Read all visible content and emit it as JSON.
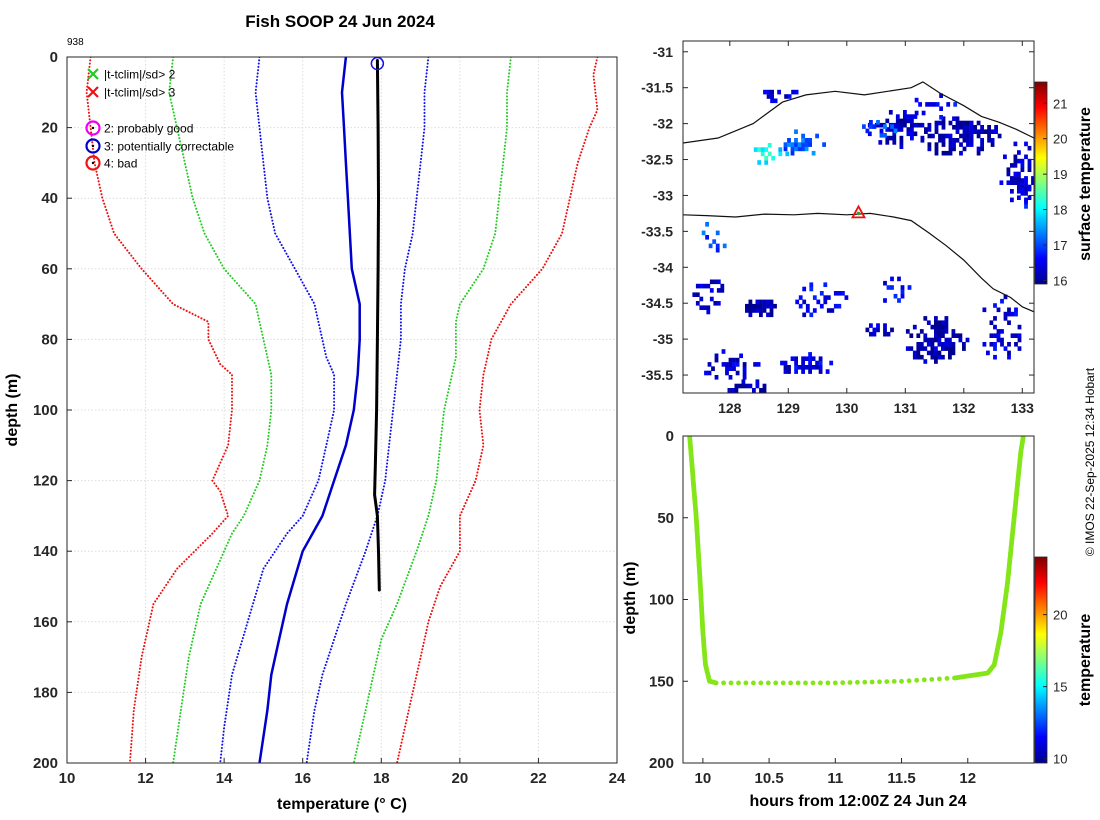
{
  "figure": {
    "title": "Fish SOOP 24 Jun 2024",
    "profile_id": "938",
    "credit": "© IMOS 22-Sep-2025 12:34 Hobart"
  },
  "chart_data": [
    {
      "type": "line",
      "name": "profile",
      "xlabel": "temperature (° C)",
      "ylabel": "depth (m)",
      "xlim": [
        10,
        24
      ],
      "ylim": [
        0,
        200
      ],
      "y_reversed": true,
      "xticks": [
        10,
        12,
        14,
        16,
        18,
        20,
        22,
        24
      ],
      "yticks": [
        0,
        20,
        40,
        60,
        80,
        100,
        120,
        140,
        160,
        180,
        200
      ],
      "grid": true,
      "legend": {
        "position": "top-left",
        "entries": [
          {
            "label": "|t-tclim|/sd> 2",
            "marker": "x",
            "color": "#22cc22"
          },
          {
            "label": "|t-tclim|/sd> 3",
            "marker": "x",
            "color": "#ee1111"
          },
          {
            "label": "2: probably good",
            "marker": "circle-dot",
            "color": "#ee00ee"
          },
          {
            "label": "3: potentially correctable",
            "marker": "circle-dot",
            "color": "#0000cc"
          },
          {
            "label": "4: bad",
            "marker": "circle-dot",
            "color": "#ee1111"
          }
        ]
      },
      "series": [
        {
          "name": "clim -3sd",
          "style": "dotted",
          "color": "#ee1111",
          "points": [
            [
              10.6,
              0
            ],
            [
              10.5,
              10
            ],
            [
              10.6,
              20
            ],
            [
              10.7,
              30
            ],
            [
              10.9,
              40
            ],
            [
              11.2,
              50
            ],
            [
              11.9,
              60
            ],
            [
              12.7,
              70
            ],
            [
              13.6,
              75
            ],
            [
              13.6,
              80
            ],
            [
              13.9,
              87
            ],
            [
              14.2,
              90
            ],
            [
              14.2,
              100
            ],
            [
              14.1,
              110
            ],
            [
              13.7,
              120
            ],
            [
              13.9,
              123
            ],
            [
              14.1,
              130
            ],
            [
              13.7,
              135
            ],
            [
              12.8,
              145
            ],
            [
              12.2,
              155
            ],
            [
              11.9,
              170
            ],
            [
              11.7,
              185
            ],
            [
              11.6,
              200
            ]
          ]
        },
        {
          "name": "clim -2sd",
          "style": "dotted",
          "color": "#22cc22",
          "points": [
            [
              12.7,
              0
            ],
            [
              12.6,
              10
            ],
            [
              12.8,
              20
            ],
            [
              13.0,
              30
            ],
            [
              13.2,
              40
            ],
            [
              13.5,
              50
            ],
            [
              14.0,
              60
            ],
            [
              14.8,
              70
            ],
            [
              14.9,
              75
            ],
            [
              15.1,
              85
            ],
            [
              15.2,
              90
            ],
            [
              15.2,
              100
            ],
            [
              15.1,
              110
            ],
            [
              14.9,
              120
            ],
            [
              14.5,
              130
            ],
            [
              14.2,
              135
            ],
            [
              13.8,
              145
            ],
            [
              13.4,
              155
            ],
            [
              13.1,
              170
            ],
            [
              12.9,
              185
            ],
            [
              12.7,
              200
            ]
          ]
        },
        {
          "name": "clim -1sd",
          "style": "dotted",
          "color": "#1111ee",
          "points": [
            [
              14.9,
              0
            ],
            [
              14.8,
              10
            ],
            [
              14.9,
              20
            ],
            [
              15.0,
              30
            ],
            [
              15.1,
              40
            ],
            [
              15.3,
              50
            ],
            [
              15.8,
              60
            ],
            [
              16.3,
              70
            ],
            [
              16.4,
              75
            ],
            [
              16.6,
              85
            ],
            [
              16.8,
              90
            ],
            [
              16.8,
              100
            ],
            [
              16.6,
              110
            ],
            [
              16.4,
              120
            ],
            [
              16.0,
              130
            ],
            [
              15.6,
              135
            ],
            [
              15.0,
              145
            ],
            [
              14.6,
              160
            ],
            [
              14.2,
              175
            ],
            [
              14.0,
              190
            ],
            [
              13.9,
              200
            ]
          ]
        },
        {
          "name": "clim mean",
          "style": "solid",
          "color": "#0000cc",
          "points": [
            [
              17.1,
              0
            ],
            [
              17.0,
              10
            ],
            [
              17.05,
              20
            ],
            [
              17.1,
              30
            ],
            [
              17.15,
              40
            ],
            [
              17.25,
              60
            ],
            [
              17.45,
              70
            ],
            [
              17.45,
              80
            ],
            [
              17.4,
              90
            ],
            [
              17.3,
              100
            ],
            [
              17.1,
              110
            ],
            [
              16.8,
              120
            ],
            [
              16.5,
              130
            ],
            [
              16.0,
              140
            ],
            [
              15.6,
              155
            ],
            [
              15.4,
              165
            ],
            [
              15.2,
              175
            ],
            [
              15.1,
              185
            ],
            [
              14.9,
              200
            ]
          ]
        },
        {
          "name": "clim +1sd",
          "style": "dotted",
          "color": "#1111ee",
          "points": [
            [
              19.2,
              0
            ],
            [
              19.1,
              10
            ],
            [
              19.1,
              20
            ],
            [
              19.0,
              30
            ],
            [
              18.9,
              40
            ],
            [
              18.8,
              50
            ],
            [
              18.6,
              60
            ],
            [
              18.5,
              70
            ],
            [
              18.5,
              80
            ],
            [
              18.4,
              90
            ],
            [
              18.3,
              100
            ],
            [
              18.2,
              110
            ],
            [
              18.1,
              120
            ],
            [
              17.9,
              130
            ],
            [
              17.6,
              140
            ],
            [
              17.1,
              155
            ],
            [
              16.8,
              165
            ],
            [
              16.5,
              175
            ],
            [
              16.3,
              185
            ],
            [
              16.1,
              200
            ]
          ]
        },
        {
          "name": "clim +2sd",
          "style": "dotted",
          "color": "#22cc22",
          "points": [
            [
              21.3,
              0
            ],
            [
              21.2,
              10
            ],
            [
              21.2,
              20
            ],
            [
              21.1,
              30
            ],
            [
              21.0,
              40
            ],
            [
              20.9,
              50
            ],
            [
              20.6,
              60
            ],
            [
              20.0,
              70
            ],
            [
              19.9,
              75
            ],
            [
              19.9,
              85
            ],
            [
              19.8,
              90
            ],
            [
              19.6,
              100
            ],
            [
              19.5,
              110
            ],
            [
              19.4,
              120
            ],
            [
              19.2,
              130
            ],
            [
              18.9,
              140
            ],
            [
              18.4,
              155
            ],
            [
              18.0,
              165
            ],
            [
              17.8,
              175
            ],
            [
              17.6,
              185
            ],
            [
              17.3,
              200
            ]
          ]
        },
        {
          "name": "clim +3sd",
          "style": "dotted",
          "color": "#ee1111",
          "points": [
            [
              23.5,
              0
            ],
            [
              23.4,
              5
            ],
            [
              23.5,
              15
            ],
            [
              23.3,
              20
            ],
            [
              23.0,
              30
            ],
            [
              22.8,
              40
            ],
            [
              22.6,
              50
            ],
            [
              22.1,
              60
            ],
            [
              21.3,
              70
            ],
            [
              20.8,
              80
            ],
            [
              20.7,
              85
            ],
            [
              20.6,
              90
            ],
            [
              20.5,
              100
            ],
            [
              20.6,
              110
            ],
            [
              20.4,
              120
            ],
            [
              20.0,
              130
            ],
            [
              20.0,
              140
            ],
            [
              19.5,
              150
            ],
            [
              19.2,
              160
            ],
            [
              19.0,
              170
            ],
            [
              18.8,
              180
            ],
            [
              18.5,
              195
            ],
            [
              18.4,
              200
            ]
          ]
        },
        {
          "name": "profile",
          "style": "solid",
          "color": "#000000",
          "points": [
            [
              17.9,
              1
            ],
            [
              17.92,
              20
            ],
            [
              17.93,
              40
            ],
            [
              17.92,
              60
            ],
            [
              17.9,
              80
            ],
            [
              17.88,
              100
            ],
            [
              17.85,
              115
            ],
            [
              17.83,
              124
            ],
            [
              17.9,
              130
            ],
            [
              17.93,
              140
            ],
            [
              17.95,
              151
            ]
          ]
        }
      ],
      "annotations": [
        {
          "type": "circle",
          "color": "#1111ee",
          "x": 17.9,
          "y": 1
        }
      ]
    },
    {
      "type": "heatmap",
      "name": "surface temperature map",
      "colorbar_label": "surface temperature",
      "xlim": [
        127.2,
        133.2
      ],
      "ylim": [
        -35.75,
        -30.85
      ],
      "xticks": [
        128,
        129,
        130,
        131,
        132,
        133
      ],
      "yticks": [
        -31,
        -31.5,
        -32,
        -32.5,
        -33,
        -33.5,
        -34,
        -34.5,
        -35,
        -35.5
      ],
      "colorbar_ticks": [
        16,
        17,
        18,
        19,
        20,
        21
      ],
      "clim": [
        15.9,
        21.6
      ],
      "marker": {
        "lon": 130.2,
        "lat": -33.25,
        "shape": "triangle",
        "color": "#ee1111"
      },
      "coastline": [
        [
          127.2,
          -32.27
        ],
        [
          127.8,
          -32.2
        ],
        [
          128.4,
          -32.0
        ],
        [
          128.9,
          -31.7
        ],
        [
          129.3,
          -31.6
        ],
        [
          129.8,
          -31.55
        ],
        [
          130.3,
          -31.6
        ],
        [
          130.7,
          -31.55
        ],
        [
          131.1,
          -31.5
        ],
        [
          131.3,
          -31.42
        ],
        [
          131.6,
          -31.58
        ],
        [
          132.0,
          -31.75
        ],
        [
          132.3,
          -31.9
        ],
        [
          132.6,
          -31.98
        ],
        [
          132.9,
          -32.08
        ],
        [
          133.2,
          -32.2
        ]
      ],
      "track": [
        [
          127.2,
          -33.27
        ],
        [
          127.6,
          -33.28
        ],
        [
          128.1,
          -33.3
        ],
        [
          128.6,
          -33.26
        ],
        [
          129.1,
          -33.27
        ],
        [
          129.5,
          -33.25
        ],
        [
          130.0,
          -33.27
        ],
        [
          130.4,
          -33.25
        ],
        [
          130.8,
          -33.3
        ],
        [
          131.1,
          -33.35
        ],
        [
          131.4,
          -33.52
        ],
        [
          131.7,
          -33.7
        ],
        [
          132.0,
          -33.9
        ],
        [
          132.3,
          -34.15
        ],
        [
          132.5,
          -34.3
        ],
        [
          132.8,
          -34.42
        ],
        [
          133.0,
          -34.55
        ],
        [
          133.2,
          -34.62
        ]
      ]
    },
    {
      "type": "scatter",
      "name": "depth-time",
      "xlabel": "hours from 12:00Z 24 Jun 24",
      "ylabel": "depth (m)",
      "colorbar_label": "temperature",
      "xlim": [
        9.85,
        12.5
      ],
      "ylim": [
        0,
        200
      ],
      "y_reversed": true,
      "xticks": [
        10,
        10.5,
        11,
        11.5,
        12
      ],
      "xtick_labels": [
        "10",
        "10.5",
        "11",
        "11.5",
        "12"
      ],
      "yticks": [
        0,
        50,
        100,
        150,
        200
      ],
      "colorbar_ticks": [
        10,
        15,
        20
      ],
      "clim": [
        9.7,
        24.0
      ],
      "point_color": "#84e619",
      "points": [
        [
          9.9,
          0
        ],
        [
          9.92,
          20
        ],
        [
          9.95,
          50
        ],
        [
          9.98,
          90
        ],
        [
          10.0,
          120
        ],
        [
          10.02,
          140
        ],
        [
          10.05,
          150
        ],
        [
          10.1,
          151
        ],
        [
          11.0,
          151
        ],
        [
          11.5,
          150
        ],
        [
          11.9,
          148
        ],
        [
          12.15,
          145
        ],
        [
          12.2,
          140
        ],
        [
          12.25,
          120
        ],
        [
          12.3,
          90
        ],
        [
          12.35,
          50
        ],
        [
          12.4,
          10
        ],
        [
          12.42,
          0
        ]
      ]
    }
  ]
}
